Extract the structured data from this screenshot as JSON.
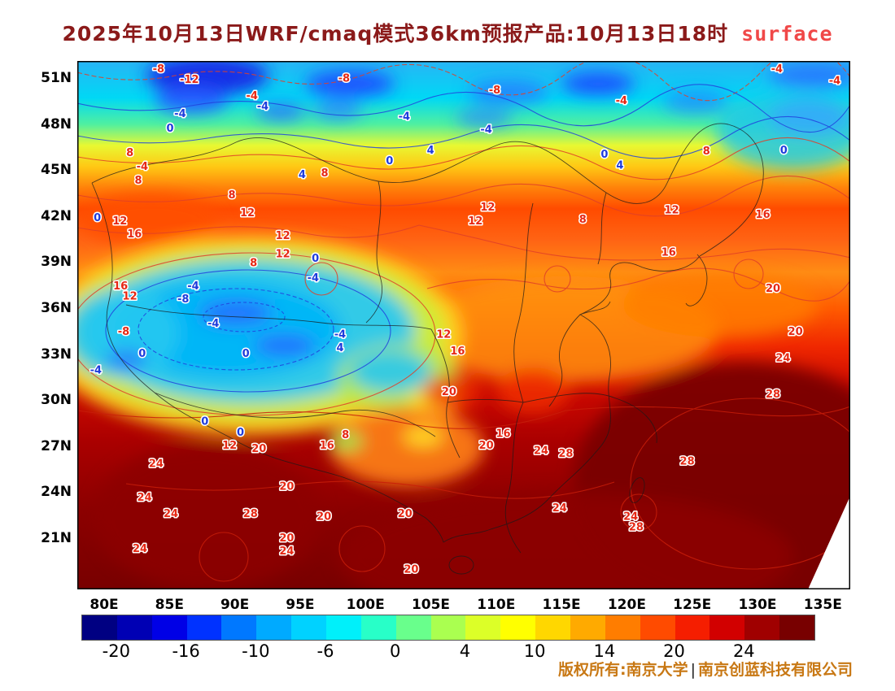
{
  "title": {
    "main": "2025年10月13日WRF/cmaq模式36km预报产品:10月13日18时",
    "suffix": "surface",
    "main_color": "#8b1a1a",
    "suffix_color": "#f04848"
  },
  "footer": {
    "left": "版权所有:南京大学",
    "sep": "|",
    "right": "南京创蓝科技有限公司",
    "color": "#c87814"
  },
  "chart_data": {
    "type": "heatmap",
    "subtype": "filled-contour-temperature-map",
    "region": "China",
    "title": "2025年10月13日WRF/cmaq模式36km预报产品:10月13日18时 surface",
    "lat_ticks": [
      "51N",
      "48N",
      "45N",
      "42N",
      "39N",
      "36N",
      "33N",
      "30N",
      "27N",
      "24N",
      "21N"
    ],
    "lon_ticks": [
      "80E",
      "85E",
      "90E",
      "95E",
      "100E",
      "105E",
      "110E",
      "115E",
      "120E",
      "125E",
      "130E",
      "135E"
    ],
    "contour_levels_labeled": [
      -12,
      -8,
      -4,
      0,
      4,
      8,
      12,
      16,
      20,
      24,
      28
    ],
    "label_colors": {
      "r": "#e62814",
      "b": "#1e3cdc"
    },
    "colorbar_colors": [
      "#000082",
      "#0000b4",
      "#0000e6",
      "#0032ff",
      "#0078ff",
      "#00aaff",
      "#00d2ff",
      "#00f0fa",
      "#28ffc8",
      "#69ff8c",
      "#aaff50",
      "#dcff28",
      "#ffff00",
      "#ffd700",
      "#ffaa00",
      "#ff7d00",
      "#ff4b00",
      "#f51e00",
      "#d20000",
      "#a00000",
      "#780000"
    ],
    "colorbar_ticks": [
      {
        "label": "-20",
        "value": -20,
        "pos": 4.76
      },
      {
        "label": "-16",
        "value": -16,
        "pos": 14.29
      },
      {
        "label": "-10",
        "value": -10,
        "pos": 23.81
      },
      {
        "label": "-6",
        "value": -6,
        "pos": 33.33
      },
      {
        "label": "0",
        "value": 0,
        "pos": 42.86
      },
      {
        "label": "4",
        "value": 4,
        "pos": 52.38
      },
      {
        "label": "10",
        "value": 10,
        "pos": 61.9
      },
      {
        "label": "14",
        "value": 14,
        "pos": 71.43
      },
      {
        "label": "20",
        "value": 20,
        "pos": 80.95
      },
      {
        "label": "24",
        "value": 24,
        "pos": 90.48
      }
    ],
    "position_units": "percent of plot area, x right / y down",
    "contour_labels": [
      {
        "v": "-8",
        "x": 10.5,
        "y": 1.5,
        "c": "r"
      },
      {
        "v": "-12",
        "x": 14.5,
        "y": 3.5,
        "c": "r"
      },
      {
        "v": "-8",
        "x": 34.5,
        "y": 3.3,
        "c": "r"
      },
      {
        "v": "-8",
        "x": 54.0,
        "y": 5.5,
        "c": "r"
      },
      {
        "v": "-4",
        "x": 90.5,
        "y": 1.5,
        "c": "r"
      },
      {
        "v": "-4",
        "x": 98.0,
        "y": 3.8,
        "c": "r"
      },
      {
        "v": "-4",
        "x": 22.6,
        "y": 6.6,
        "c": "r"
      },
      {
        "v": "-4",
        "x": 24.0,
        "y": 8.6,
        "c": "b"
      },
      {
        "v": "-4",
        "x": 13.3,
        "y": 10.0,
        "c": "b"
      },
      {
        "v": "-4",
        "x": 42.3,
        "y": 10.5,
        "c": "b"
      },
      {
        "v": "-4",
        "x": 52.9,
        "y": 13.0,
        "c": "b"
      },
      {
        "v": "-4",
        "x": 70.4,
        "y": 7.5,
        "c": "r"
      },
      {
        "v": "0",
        "x": 12.0,
        "y": 12.8,
        "c": "b"
      },
      {
        "v": "0",
        "x": 40.4,
        "y": 18.9,
        "c": "b"
      },
      {
        "v": "4",
        "x": 45.7,
        "y": 16.9,
        "c": "b"
      },
      {
        "v": "0",
        "x": 68.2,
        "y": 17.7,
        "c": "b"
      },
      {
        "v": "4",
        "x": 70.2,
        "y": 19.8,
        "c": "b"
      },
      {
        "v": "0",
        "x": 91.4,
        "y": 16.9,
        "c": "b"
      },
      {
        "v": "8",
        "x": 81.4,
        "y": 17.1,
        "c": "r"
      },
      {
        "v": "8",
        "x": 6.8,
        "y": 17.4,
        "c": "r"
      },
      {
        "v": "-4",
        "x": 8.4,
        "y": 20.0,
        "c": "r"
      },
      {
        "v": "8",
        "x": 7.9,
        "y": 22.6,
        "c": "r"
      },
      {
        "v": "4",
        "x": 29.1,
        "y": 21.5,
        "c": "b"
      },
      {
        "v": "8",
        "x": 32.0,
        "y": 21.2,
        "c": "r"
      },
      {
        "v": "0",
        "x": 2.6,
        "y": 29.7,
        "c": "b"
      },
      {
        "v": "12",
        "x": 5.5,
        "y": 30.3,
        "c": "r"
      },
      {
        "v": "8",
        "x": 20.0,
        "y": 25.4,
        "c": "r"
      },
      {
        "v": "12",
        "x": 22.0,
        "y": 28.8,
        "c": "r"
      },
      {
        "v": "12",
        "x": 26.6,
        "y": 33.1,
        "c": "r"
      },
      {
        "v": "12",
        "x": 53.1,
        "y": 27.7,
        "c": "r"
      },
      {
        "v": "12",
        "x": 51.5,
        "y": 30.3,
        "c": "r"
      },
      {
        "v": "8",
        "x": 65.4,
        "y": 30.0,
        "c": "r"
      },
      {
        "v": "12",
        "x": 76.9,
        "y": 28.2,
        "c": "r"
      },
      {
        "v": "16",
        "x": 88.7,
        "y": 29.1,
        "c": "r"
      },
      {
        "v": "16",
        "x": 7.4,
        "y": 32.8,
        "c": "r"
      },
      {
        "v": "12",
        "x": 26.6,
        "y": 36.5,
        "c": "r"
      },
      {
        "v": "8",
        "x": 22.8,
        "y": 38.2,
        "c": "r"
      },
      {
        "v": "16",
        "x": 76.5,
        "y": 36.2,
        "c": "r"
      },
      {
        "v": "16",
        "x": 5.6,
        "y": 42.6,
        "c": "r"
      },
      {
        "v": "12",
        "x": 6.8,
        "y": 44.5,
        "c": "r"
      },
      {
        "v": "-4",
        "x": 15.0,
        "y": 42.6,
        "c": "b"
      },
      {
        "v": "0",
        "x": 30.8,
        "y": 37.4,
        "c": "b"
      },
      {
        "v": "-4",
        "x": 30.5,
        "y": 41.1,
        "c": "b"
      },
      {
        "v": "-8",
        "x": 13.7,
        "y": 45.1,
        "c": "b"
      },
      {
        "v": "20",
        "x": 90.0,
        "y": 43.1,
        "c": "r"
      },
      {
        "v": "-4",
        "x": 17.6,
        "y": 49.7,
        "c": "b"
      },
      {
        "v": "-8",
        "x": 6.0,
        "y": 51.2,
        "c": "r"
      },
      {
        "v": "-4",
        "x": 34.0,
        "y": 51.8,
        "c": "b"
      },
      {
        "v": "20",
        "x": 92.9,
        "y": 51.2,
        "c": "r"
      },
      {
        "v": "0",
        "x": 8.4,
        "y": 55.4,
        "c": "b"
      },
      {
        "v": "-4",
        "x": 2.4,
        "y": 58.5,
        "c": "b"
      },
      {
        "v": "0",
        "x": 21.8,
        "y": 55.4,
        "c": "b"
      },
      {
        "v": "4",
        "x": 34.0,
        "y": 54.3,
        "c": "b"
      },
      {
        "v": "12",
        "x": 47.4,
        "y": 51.8,
        "c": "r"
      },
      {
        "v": "16",
        "x": 49.2,
        "y": 54.9,
        "c": "r"
      },
      {
        "v": "24",
        "x": 91.3,
        "y": 56.2,
        "c": "r"
      },
      {
        "v": "0",
        "x": 16.5,
        "y": 68.2,
        "c": "b"
      },
      {
        "v": "0",
        "x": 21.1,
        "y": 70.3,
        "c": "b"
      },
      {
        "v": "8",
        "x": 34.7,
        "y": 70.8,
        "c": "r"
      },
      {
        "v": "16",
        "x": 32.3,
        "y": 72.8,
        "c": "r"
      },
      {
        "v": "20",
        "x": 48.1,
        "y": 62.6,
        "c": "r"
      },
      {
        "v": "28",
        "x": 90.0,
        "y": 63.1,
        "c": "r"
      },
      {
        "v": "12",
        "x": 19.7,
        "y": 72.8,
        "c": "r"
      },
      {
        "v": "20",
        "x": 23.5,
        "y": 73.4,
        "c": "r"
      },
      {
        "v": "16",
        "x": 55.1,
        "y": 70.5,
        "c": "r"
      },
      {
        "v": "20",
        "x": 52.9,
        "y": 72.8,
        "c": "r"
      },
      {
        "v": "24",
        "x": 60.0,
        "y": 73.8,
        "c": "r"
      },
      {
        "v": "28",
        "x": 63.2,
        "y": 74.3,
        "c": "r"
      },
      {
        "v": "24",
        "x": 10.2,
        "y": 76.2,
        "c": "r"
      },
      {
        "v": "24",
        "x": 8.7,
        "y": 82.6,
        "c": "r"
      },
      {
        "v": "24",
        "x": 12.1,
        "y": 85.7,
        "c": "r"
      },
      {
        "v": "28",
        "x": 22.4,
        "y": 85.7,
        "c": "r"
      },
      {
        "v": "20",
        "x": 27.1,
        "y": 80.5,
        "c": "r"
      },
      {
        "v": "20",
        "x": 31.9,
        "y": 86.2,
        "c": "r"
      },
      {
        "v": "20",
        "x": 27.1,
        "y": 90.3,
        "c": "r"
      },
      {
        "v": "24",
        "x": 27.1,
        "y": 92.8,
        "c": "r"
      },
      {
        "v": "24",
        "x": 8.1,
        "y": 92.3,
        "c": "r"
      },
      {
        "v": "20",
        "x": 42.4,
        "y": 85.7,
        "c": "r"
      },
      {
        "v": "20",
        "x": 43.2,
        "y": 96.2,
        "c": "r"
      },
      {
        "v": "24",
        "x": 62.4,
        "y": 84.6,
        "c": "r"
      },
      {
        "v": "24",
        "x": 71.6,
        "y": 86.2,
        "c": "r"
      },
      {
        "v": "28",
        "x": 72.3,
        "y": 88.2,
        "c": "r"
      },
      {
        "v": "28",
        "x": 78.9,
        "y": 75.8,
        "c": "r"
      }
    ]
  }
}
